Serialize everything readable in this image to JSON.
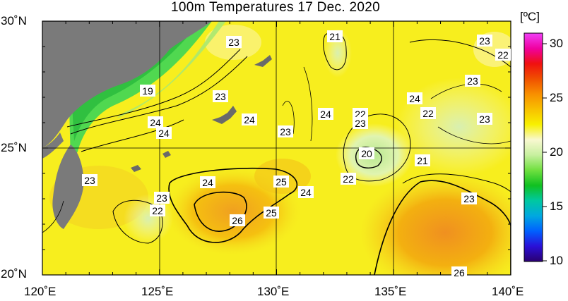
{
  "title": "100m Temperatures  17 Dec. 2020",
  "map": {
    "lat_labels": [
      "30˚N",
      "25˚N",
      "20˚N"
    ],
    "lon_labels": [
      "120˚E",
      "125˚E",
      "130˚E",
      "135˚E",
      "140˚E"
    ],
    "lat_range": [
      20,
      30
    ],
    "lon_range": [
      120,
      140
    ],
    "land_color": "#7a7a7a",
    "contour_labels": [
      "23",
      "21",
      "23",
      "22",
      "19",
      "23",
      "24",
      "23",
      "24",
      "24",
      "23",
      "22",
      "23",
      "24",
      "24",
      "22",
      "23",
      "20",
      "21",
      "23",
      "24",
      "25",
      "22",
      "24",
      "23",
      "22",
      "25",
      "26",
      "23",
      "26"
    ]
  },
  "colorbar": {
    "unit": "[ºC]",
    "ticks": [
      "30",
      "25",
      "20",
      "15",
      "10"
    ],
    "range": [
      10,
      31
    ],
    "colors": [
      "#2a0070",
      "#2a10d8",
      "#0060ff",
      "#00a8e0",
      "#00c8a0",
      "#10c020",
      "#70e040",
      "#c8f0a0",
      "#f8f8d0",
      "#f8f000",
      "#f8c000",
      "#f89000",
      "#f05000",
      "#f01010",
      "#f000a0",
      "#f040f8"
    ]
  }
}
